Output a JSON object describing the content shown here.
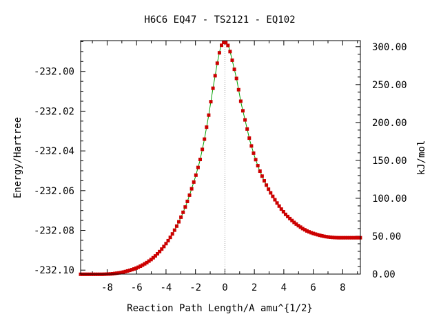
{
  "chart_data": {
    "type": "line",
    "title": "H6C6   EQ47 - TS2121 - EQ102",
    "xlabel": "Reaction Path Length/A amu^{1/2}",
    "ylabel": "Energy/Hartree",
    "y2label": "kJ/mol",
    "xlim": [
      -9.8,
      9.2
    ],
    "ylim": [
      -232.102,
      -231.9845
    ],
    "y2lim": [
      0,
      308
    ],
    "x_ticks": [
      -8,
      -6,
      -4,
      -2,
      0,
      2,
      4,
      6,
      8
    ],
    "x_tick_labels": [
      "-8",
      "-6",
      "-4",
      "-2",
      "0",
      "2",
      "4",
      "6",
      "8"
    ],
    "y_ticks": [
      -232.1,
      -232.08,
      -232.06,
      -232.04,
      -232.02,
      -232.0
    ],
    "y_tick_labels": [
      "-232.10",
      "-232.08",
      "-232.06",
      "-232.04",
      "-232.02",
      "-232.00"
    ],
    "y2_ticks": [
      0,
      50,
      100,
      150,
      200,
      250,
      300
    ],
    "y2_tick_labels": [
      "0.00",
      "50.00",
      "100.00",
      "150.00",
      "200.00",
      "250.00",
      "300.00"
    ],
    "grid": false,
    "ts_marker_x": 0,
    "line_color": "#00a000",
    "marker_color": "#cc0000",
    "ts_line_color": "#999999",
    "series": [
      {
        "x": [
          -9.8,
          -9.5,
          -9.2,
          -8.9,
          -8.6,
          -8.3,
          -8.0,
          -7.7,
          -7.4,
          -7.1,
          -6.8,
          -6.5,
          -6.2,
          -5.9,
          -5.6,
          -5.3,
          -5.0,
          -4.7,
          -4.4,
          -4.1,
          -3.8,
          -3.5,
          -3.2,
          -2.9,
          -2.6,
          -2.3,
          -2.0,
          -1.7,
          -1.4,
          -1.1,
          -0.8,
          -0.5,
          -0.3,
          -0.15,
          0.0,
          0.15,
          0.3,
          0.5,
          0.8,
          1.1,
          1.4,
          1.7,
          2.0,
          2.3,
          2.6,
          2.9,
          3.2,
          3.5,
          3.8,
          4.1,
          4.4,
          4.7,
          5.0,
          5.3,
          5.6,
          5.9,
          6.2,
          6.5,
          6.8,
          7.1,
          7.4,
          7.7,
          8.0,
          8.3,
          8.6,
          8.9,
          9.2
        ],
        "y": [
          -232.1021,
          -232.1021,
          -232.1021,
          -232.1021,
          -232.1021,
          -232.1021,
          -232.102,
          -232.1019,
          -232.1016,
          -232.1013,
          -232.1008,
          -232.1002,
          -232.0995,
          -232.0986,
          -232.0975,
          -232.0962,
          -232.0946,
          -232.0927,
          -232.0904,
          -232.0877,
          -232.0846,
          -232.081,
          -232.0768,
          -232.072,
          -232.0665,
          -232.06,
          -232.053,
          -232.045,
          -232.0345,
          -232.022,
          -232.008,
          -231.995,
          -231.988,
          -231.9855,
          -231.9852,
          -231.986,
          -231.9885,
          -231.9945,
          -232.004,
          -232.016,
          -232.0255,
          -232.035,
          -232.0425,
          -232.0488,
          -232.054,
          -232.0585,
          -232.0623,
          -232.0658,
          -232.069,
          -232.0718,
          -232.074,
          -232.076,
          -232.0777,
          -232.0792,
          -232.0804,
          -232.0813,
          -232.082,
          -232.0826,
          -232.0831,
          -232.0834,
          -232.0836,
          -232.0837,
          -232.0837,
          -232.0837,
          -232.0837,
          -232.0837,
          -232.0837
        ]
      }
    ]
  }
}
